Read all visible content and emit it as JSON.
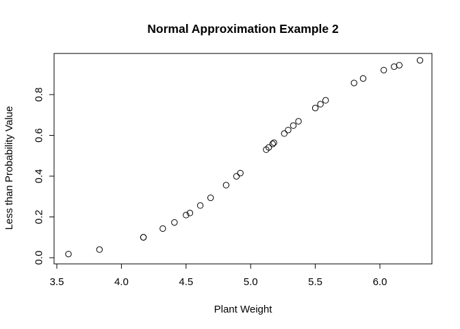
{
  "chart_data": {
    "type": "scatter",
    "title": "Normal Approximation Example 2",
    "xlabel": "Plant Weight",
    "ylabel": "Less than Probability Value",
    "xlim": [
      3.5,
      6.4
    ],
    "ylim": [
      0.0,
      1.0
    ],
    "x_ticks": [
      3.5,
      4.0,
      4.5,
      5.0,
      5.5,
      6.0
    ],
    "x_tick_labels": [
      "3.5",
      "4.0",
      "4.5",
      "5.0",
      "5.5",
      "6.0"
    ],
    "y_ticks": [
      0.0,
      0.2,
      0.4,
      0.6,
      0.8
    ],
    "y_tick_labels": [
      "0.0",
      "0.2",
      "0.4",
      "0.6",
      "0.8"
    ],
    "grid": false,
    "points": [
      {
        "x": 3.59,
        "y": 0.018
      },
      {
        "x": 3.83,
        "y": 0.04
      },
      {
        "x": 4.17,
        "y": 0.1
      },
      {
        "x": 4.17,
        "y": 0.1
      },
      {
        "x": 4.32,
        "y": 0.143
      },
      {
        "x": 4.41,
        "y": 0.173
      },
      {
        "x": 4.5,
        "y": 0.209
      },
      {
        "x": 4.53,
        "y": 0.219
      },
      {
        "x": 4.61,
        "y": 0.256
      },
      {
        "x": 4.69,
        "y": 0.294
      },
      {
        "x": 4.81,
        "y": 0.356
      },
      {
        "x": 4.89,
        "y": 0.399
      },
      {
        "x": 4.92,
        "y": 0.415
      },
      {
        "x": 5.12,
        "y": 0.53
      },
      {
        "x": 5.14,
        "y": 0.541
      },
      {
        "x": 5.17,
        "y": 0.558
      },
      {
        "x": 5.18,
        "y": 0.564
      },
      {
        "x": 5.26,
        "y": 0.609
      },
      {
        "x": 5.29,
        "y": 0.626
      },
      {
        "x": 5.33,
        "y": 0.648
      },
      {
        "x": 5.37,
        "y": 0.669
      },
      {
        "x": 5.5,
        "y": 0.734
      },
      {
        "x": 5.54,
        "y": 0.753
      },
      {
        "x": 5.58,
        "y": 0.772
      },
      {
        "x": 5.8,
        "y": 0.857
      },
      {
        "x": 5.87,
        "y": 0.879
      },
      {
        "x": 6.03,
        "y": 0.92
      },
      {
        "x": 6.11,
        "y": 0.937
      },
      {
        "x": 6.15,
        "y": 0.944
      },
      {
        "x": 6.31,
        "y": 0.968
      }
    ]
  }
}
